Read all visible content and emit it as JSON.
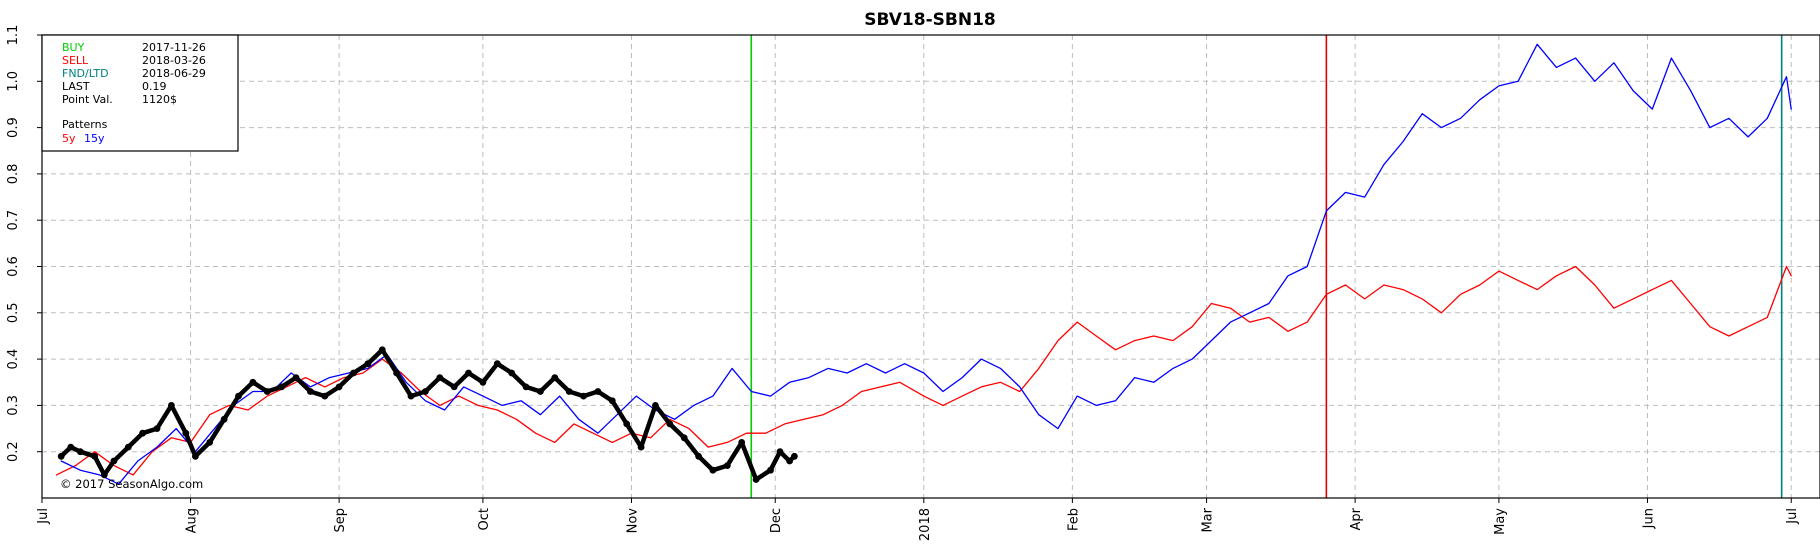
{
  "chart_data": {
    "type": "line",
    "title": "SBV18-SBN18",
    "copyright": "© 2017 SeasonAlgo.com",
    "x_axis": {
      "start": "2017-07-01",
      "end": "2018-07-07",
      "tick_labels": [
        {
          "date": "2017-07-01",
          "label": "Jul"
        },
        {
          "date": "2017-08-01",
          "label": "Aug"
        },
        {
          "date": "2017-09-01",
          "label": "Sep"
        },
        {
          "date": "2017-10-01",
          "label": "Oct"
        },
        {
          "date": "2017-11-01",
          "label": "Nov"
        },
        {
          "date": "2017-12-01",
          "label": "Dec"
        },
        {
          "date": "2018-01-01",
          "label": "2018"
        },
        {
          "date": "2018-02-01",
          "label": "Feb"
        },
        {
          "date": "2018-03-01",
          "label": "Mar"
        },
        {
          "date": "2018-04-01",
          "label": "Apr"
        },
        {
          "date": "2018-05-01",
          "label": "May"
        },
        {
          "date": "2018-06-01",
          "label": "Jun"
        },
        {
          "date": "2018-07-01",
          "label": "Jul"
        }
      ]
    },
    "y_axis": {
      "ylim": [
        0.1,
        1.1
      ],
      "ticks": [
        0.2,
        0.3,
        0.4,
        0.5,
        0.6,
        0.7,
        0.8,
        0.9,
        1.0,
        1.1
      ],
      "tick_labels": [
        "0.2",
        "0.3",
        "0.4",
        "0.5",
        "0.6",
        "0.7",
        "0.8",
        "0.9",
        "1.0",
        "1.1"
      ]
    },
    "grid": true,
    "vertical_markers": [
      {
        "date": "2017-11-26",
        "color": "#00cc00"
      },
      {
        "date": "2018-03-26",
        "color": "#dd0000"
      },
      {
        "date": "2018-06-29",
        "color": "#008080"
      }
    ],
    "info_box": {
      "position": "top-left",
      "rows": [
        {
          "label": "BUY",
          "value": "2017-11-26",
          "label_color": "#00cc00"
        },
        {
          "label": "SELL",
          "value": "2018-03-26",
          "label_color": "#ff0000"
        },
        {
          "label": "FND/LTD",
          "value": "2018-06-29",
          "label_color": "#008080"
        },
        {
          "label": "LAST",
          "value": "0.19",
          "label_color": "#000000"
        },
        {
          "label": "Point Val.",
          "value": "1120$",
          "label_color": "#000000"
        }
      ],
      "patterns_heading": "Patterns",
      "pattern_entries": [
        {
          "label": "5y",
          "color": "#ff0000"
        },
        {
          "label": "15y",
          "color": "#0000ff"
        }
      ]
    },
    "series": [
      {
        "name": "5y",
        "color": "#ff0000",
        "width": 1.3,
        "points": [
          [
            "2017-07-04",
            0.15
          ],
          [
            "2017-07-08",
            0.17
          ],
          [
            "2017-07-12",
            0.2
          ],
          [
            "2017-07-16",
            0.17
          ],
          [
            "2017-07-20",
            0.15
          ],
          [
            "2017-07-24",
            0.2
          ],
          [
            "2017-07-28",
            0.23
          ],
          [
            "2017-08-01",
            0.22
          ],
          [
            "2017-08-05",
            0.28
          ],
          [
            "2017-08-09",
            0.3
          ],
          [
            "2017-08-13",
            0.29
          ],
          [
            "2017-08-17",
            0.32
          ],
          [
            "2017-08-21",
            0.34
          ],
          [
            "2017-08-25",
            0.36
          ],
          [
            "2017-08-29",
            0.34
          ],
          [
            "2017-09-02",
            0.36
          ],
          [
            "2017-09-06",
            0.37
          ],
          [
            "2017-09-10",
            0.4
          ],
          [
            "2017-09-14",
            0.37
          ],
          [
            "2017-09-18",
            0.33
          ],
          [
            "2017-09-22",
            0.3
          ],
          [
            "2017-09-26",
            0.32
          ],
          [
            "2017-09-30",
            0.3
          ],
          [
            "2017-10-04",
            0.29
          ],
          [
            "2017-10-08",
            0.27
          ],
          [
            "2017-10-12",
            0.24
          ],
          [
            "2017-10-16",
            0.22
          ],
          [
            "2017-10-20",
            0.26
          ],
          [
            "2017-10-24",
            0.24
          ],
          [
            "2017-10-28",
            0.22
          ],
          [
            "2017-11-01",
            0.24
          ],
          [
            "2017-11-05",
            0.23
          ],
          [
            "2017-11-09",
            0.27
          ],
          [
            "2017-11-13",
            0.25
          ],
          [
            "2017-11-17",
            0.21
          ],
          [
            "2017-11-21",
            0.22
          ],
          [
            "2017-11-25",
            0.24
          ],
          [
            "2017-11-29",
            0.24
          ],
          [
            "2017-12-03",
            0.26
          ],
          [
            "2017-12-07",
            0.27
          ],
          [
            "2017-12-11",
            0.28
          ],
          [
            "2017-12-15",
            0.3
          ],
          [
            "2017-12-19",
            0.33
          ],
          [
            "2017-12-23",
            0.34
          ],
          [
            "2017-12-27",
            0.35
          ],
          [
            "2018-01-01",
            0.32
          ],
          [
            "2018-01-05",
            0.3
          ],
          [
            "2018-01-09",
            0.32
          ],
          [
            "2018-01-13",
            0.34
          ],
          [
            "2018-01-17",
            0.35
          ],
          [
            "2018-01-21",
            0.33
          ],
          [
            "2018-01-25",
            0.38
          ],
          [
            "2018-01-29",
            0.44
          ],
          [
            "2018-02-02",
            0.48
          ],
          [
            "2018-02-06",
            0.45
          ],
          [
            "2018-02-10",
            0.42
          ],
          [
            "2018-02-14",
            0.44
          ],
          [
            "2018-02-18",
            0.45
          ],
          [
            "2018-02-22",
            0.44
          ],
          [
            "2018-02-26",
            0.47
          ],
          [
            "2018-03-02",
            0.52
          ],
          [
            "2018-03-06",
            0.51
          ],
          [
            "2018-03-10",
            0.48
          ],
          [
            "2018-03-14",
            0.49
          ],
          [
            "2018-03-18",
            0.46
          ],
          [
            "2018-03-22",
            0.48
          ],
          [
            "2018-03-26",
            0.54
          ],
          [
            "2018-03-30",
            0.56
          ],
          [
            "2018-04-03",
            0.53
          ],
          [
            "2018-04-07",
            0.56
          ],
          [
            "2018-04-11",
            0.55
          ],
          [
            "2018-04-15",
            0.53
          ],
          [
            "2018-04-19",
            0.5
          ],
          [
            "2018-04-23",
            0.54
          ],
          [
            "2018-04-27",
            0.56
          ],
          [
            "2018-05-01",
            0.59
          ],
          [
            "2018-05-05",
            0.57
          ],
          [
            "2018-05-09",
            0.55
          ],
          [
            "2018-05-13",
            0.58
          ],
          [
            "2018-05-17",
            0.6
          ],
          [
            "2018-05-21",
            0.56
          ],
          [
            "2018-05-25",
            0.51
          ],
          [
            "2018-05-29",
            0.53
          ],
          [
            "2018-06-02",
            0.55
          ],
          [
            "2018-06-06",
            0.57
          ],
          [
            "2018-06-10",
            0.52
          ],
          [
            "2018-06-14",
            0.47
          ],
          [
            "2018-06-18",
            0.45
          ],
          [
            "2018-06-22",
            0.47
          ],
          [
            "2018-06-26",
            0.49
          ],
          [
            "2018-06-30",
            0.6
          ],
          [
            "2018-07-01",
            0.58
          ]
        ]
      },
      {
        "name": "15y",
        "color": "#0000ff",
        "width": 1.3,
        "points": [
          [
            "2017-07-05",
            0.18
          ],
          [
            "2017-07-09",
            0.16
          ],
          [
            "2017-07-13",
            0.15
          ],
          [
            "2017-07-17",
            0.13
          ],
          [
            "2017-07-21",
            0.18
          ],
          [
            "2017-07-25",
            0.21
          ],
          [
            "2017-07-29",
            0.25
          ],
          [
            "2017-08-02",
            0.2
          ],
          [
            "2017-08-06",
            0.25
          ],
          [
            "2017-08-10",
            0.3
          ],
          [
            "2017-08-14",
            0.33
          ],
          [
            "2017-08-18",
            0.33
          ],
          [
            "2017-08-22",
            0.37
          ],
          [
            "2017-08-26",
            0.34
          ],
          [
            "2017-08-30",
            0.36
          ],
          [
            "2017-09-03",
            0.37
          ],
          [
            "2017-09-07",
            0.38
          ],
          [
            "2017-09-11",
            0.41
          ],
          [
            "2017-09-15",
            0.35
          ],
          [
            "2017-09-19",
            0.31
          ],
          [
            "2017-09-23",
            0.29
          ],
          [
            "2017-09-27",
            0.34
          ],
          [
            "2017-10-01",
            0.32
          ],
          [
            "2017-10-05",
            0.3
          ],
          [
            "2017-10-09",
            0.31
          ],
          [
            "2017-10-13",
            0.28
          ],
          [
            "2017-10-17",
            0.32
          ],
          [
            "2017-10-21",
            0.27
          ],
          [
            "2017-10-25",
            0.24
          ],
          [
            "2017-10-29",
            0.28
          ],
          [
            "2017-11-02",
            0.32
          ],
          [
            "2017-11-06",
            0.29
          ],
          [
            "2017-11-10",
            0.27
          ],
          [
            "2017-11-14",
            0.3
          ],
          [
            "2017-11-18",
            0.32
          ],
          [
            "2017-11-22",
            0.38
          ],
          [
            "2017-11-26",
            0.33
          ],
          [
            "2017-11-30",
            0.32
          ],
          [
            "2017-12-04",
            0.35
          ],
          [
            "2017-12-08",
            0.36
          ],
          [
            "2017-12-12",
            0.38
          ],
          [
            "2017-12-16",
            0.37
          ],
          [
            "2017-12-20",
            0.39
          ],
          [
            "2017-12-24",
            0.37
          ],
          [
            "2017-12-28",
            0.39
          ],
          [
            "2018-01-01",
            0.37
          ],
          [
            "2018-01-05",
            0.33
          ],
          [
            "2018-01-09",
            0.36
          ],
          [
            "2018-01-13",
            0.4
          ],
          [
            "2018-01-17",
            0.38
          ],
          [
            "2018-01-21",
            0.34
          ],
          [
            "2018-01-25",
            0.28
          ],
          [
            "2018-01-29",
            0.25
          ],
          [
            "2018-02-02",
            0.32
          ],
          [
            "2018-02-06",
            0.3
          ],
          [
            "2018-02-10",
            0.31
          ],
          [
            "2018-02-14",
            0.36
          ],
          [
            "2018-02-18",
            0.35
          ],
          [
            "2018-02-22",
            0.38
          ],
          [
            "2018-02-26",
            0.4
          ],
          [
            "2018-03-02",
            0.44
          ],
          [
            "2018-03-06",
            0.48
          ],
          [
            "2018-03-10",
            0.5
          ],
          [
            "2018-03-14",
            0.52
          ],
          [
            "2018-03-18",
            0.58
          ],
          [
            "2018-03-22",
            0.6
          ],
          [
            "2018-03-26",
            0.72
          ],
          [
            "2018-03-30",
            0.76
          ],
          [
            "2018-04-03",
            0.75
          ],
          [
            "2018-04-07",
            0.82
          ],
          [
            "2018-04-11",
            0.87
          ],
          [
            "2018-04-15",
            0.93
          ],
          [
            "2018-04-19",
            0.9
          ],
          [
            "2018-04-23",
            0.92
          ],
          [
            "2018-04-27",
            0.96
          ],
          [
            "2018-05-01",
            0.99
          ],
          [
            "2018-05-05",
            1.0
          ],
          [
            "2018-05-09",
            1.08
          ],
          [
            "2018-05-13",
            1.03
          ],
          [
            "2018-05-17",
            1.05
          ],
          [
            "2018-05-21",
            1.0
          ],
          [
            "2018-05-25",
            1.04
          ],
          [
            "2018-05-29",
            0.98
          ],
          [
            "2018-06-02",
            0.94
          ],
          [
            "2018-06-06",
            1.05
          ],
          [
            "2018-06-10",
            0.98
          ],
          [
            "2018-06-14",
            0.9
          ],
          [
            "2018-06-18",
            0.92
          ],
          [
            "2018-06-22",
            0.88
          ],
          [
            "2018-06-26",
            0.92
          ],
          [
            "2018-06-30",
            1.01
          ],
          [
            "2018-07-01",
            0.94
          ]
        ]
      },
      {
        "name": "",
        "color": "#000000",
        "width": 4.5,
        "markers": true,
        "points": [
          [
            "2017-07-05",
            0.19
          ],
          [
            "2017-07-07",
            0.21
          ],
          [
            "2017-07-09",
            0.2
          ],
          [
            "2017-07-12",
            0.19
          ],
          [
            "2017-07-14",
            0.15
          ],
          [
            "2017-07-16",
            0.18
          ],
          [
            "2017-07-19",
            0.21
          ],
          [
            "2017-07-22",
            0.24
          ],
          [
            "2017-07-25",
            0.25
          ],
          [
            "2017-07-28",
            0.3
          ],
          [
            "2017-07-31",
            0.24
          ],
          [
            "2017-08-02",
            0.19
          ],
          [
            "2017-08-05",
            0.22
          ],
          [
            "2017-08-08",
            0.27
          ],
          [
            "2017-08-11",
            0.32
          ],
          [
            "2017-08-14",
            0.35
          ],
          [
            "2017-08-17",
            0.33
          ],
          [
            "2017-08-20",
            0.34
          ],
          [
            "2017-08-23",
            0.36
          ],
          [
            "2017-08-26",
            0.33
          ],
          [
            "2017-08-29",
            0.32
          ],
          [
            "2017-09-01",
            0.34
          ],
          [
            "2017-09-04",
            0.37
          ],
          [
            "2017-09-07",
            0.39
          ],
          [
            "2017-09-10",
            0.42
          ],
          [
            "2017-09-13",
            0.37
          ],
          [
            "2017-09-16",
            0.32
          ],
          [
            "2017-09-19",
            0.33
          ],
          [
            "2017-09-22",
            0.36
          ],
          [
            "2017-09-25",
            0.34
          ],
          [
            "2017-09-28",
            0.37
          ],
          [
            "2017-10-01",
            0.35
          ],
          [
            "2017-10-04",
            0.39
          ],
          [
            "2017-10-07",
            0.37
          ],
          [
            "2017-10-10",
            0.34
          ],
          [
            "2017-10-13",
            0.33
          ],
          [
            "2017-10-16",
            0.36
          ],
          [
            "2017-10-19",
            0.33
          ],
          [
            "2017-10-22",
            0.32
          ],
          [
            "2017-10-25",
            0.33
          ],
          [
            "2017-10-28",
            0.31
          ],
          [
            "2017-10-31",
            0.26
          ],
          [
            "2017-11-03",
            0.21
          ],
          [
            "2017-11-06",
            0.3
          ],
          [
            "2017-11-09",
            0.26
          ],
          [
            "2017-11-12",
            0.23
          ],
          [
            "2017-11-15",
            0.19
          ],
          [
            "2017-11-18",
            0.16
          ],
          [
            "2017-11-21",
            0.17
          ],
          [
            "2017-11-24",
            0.22
          ],
          [
            "2017-11-27",
            0.14
          ],
          [
            "2017-11-30",
            0.16
          ],
          [
            "2017-12-02",
            0.2
          ],
          [
            "2017-12-04",
            0.18
          ],
          [
            "2017-12-05",
            0.19
          ]
        ]
      }
    ]
  }
}
